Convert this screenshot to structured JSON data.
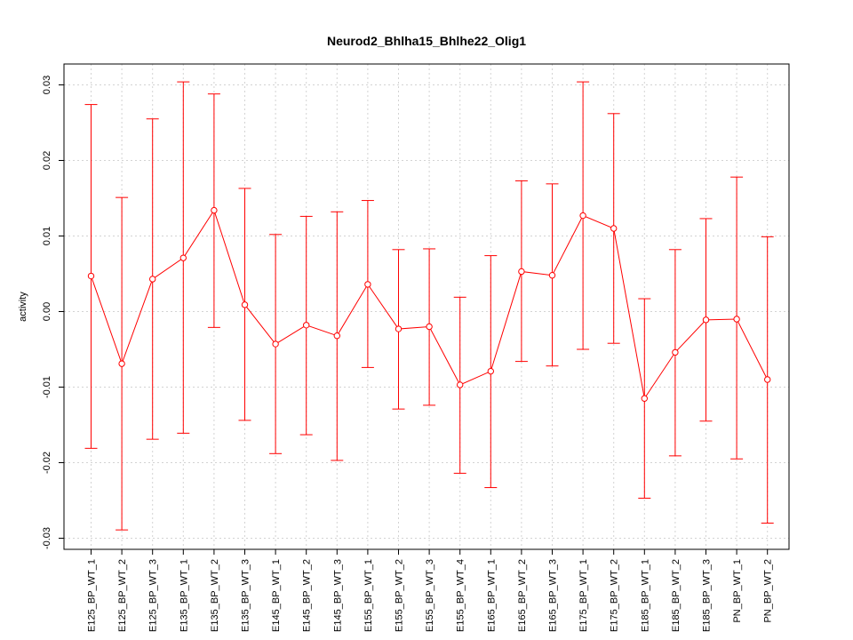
{
  "chart_data": {
    "type": "line",
    "title": "Neurod2_Bhlha15_Bhlhe22_Olig1",
    "xlabel": "",
    "ylabel": "activity",
    "ylim": [
      -0.0315,
      0.0325
    ],
    "yticks": [
      -0.03,
      -0.02,
      -0.01,
      0.0,
      0.01,
      0.02,
      0.03
    ],
    "ytick_labels": [
      "-0.03",
      "-0.02",
      "-0.01",
      "0.00",
      "0.01",
      "0.02",
      "0.03"
    ],
    "grid": true,
    "color": "#ff0000",
    "categories": [
      "E125_BP_WT_1",
      "E125_BP_WT_2",
      "E125_BP_WT_3",
      "E135_BP_WT_1",
      "E135_BP_WT_2",
      "E135_BP_WT_3",
      "E145_BP_WT_1",
      "E145_BP_WT_2",
      "E145_BP_WT_3",
      "E155_BP_WT_1",
      "E155_BP_WT_2",
      "E155_BP_WT_3",
      "E155_BP_WT_4",
      "E165_BP_WT_1",
      "E165_BP_WT_2",
      "E165_BP_WT_3",
      "E175_BP_WT_1",
      "E175_BP_WT_2",
      "E185_BP_WT_1",
      "E185_BP_WT_2",
      "E185_BP_WT_3",
      "PN_BP_WT_1",
      "PN_BP_WT_2"
    ],
    "values": [
      0.0047,
      -0.0069,
      0.0043,
      0.0071,
      0.0134,
      0.0009,
      -0.0043,
      -0.0018,
      -0.0032,
      0.0036,
      -0.0023,
      -0.002,
      -0.0097,
      -0.0079,
      0.0053,
      0.0048,
      0.0127,
      0.011,
      -0.0115,
      -0.0054,
      -0.0011,
      -0.001,
      -0.009
    ],
    "upper": [
      0.0274,
      0.0151,
      0.0255,
      0.0304,
      0.0288,
      0.0163,
      0.0102,
      0.0126,
      0.0132,
      0.0147,
      0.0082,
      0.0083,
      0.0019,
      0.0074,
      0.0173,
      0.0169,
      0.0304,
      0.0262,
      0.0017,
      0.0082,
      0.0123,
      0.0178,
      0.0099
    ],
    "lower": [
      -0.0181,
      -0.0289,
      -0.0169,
      -0.0161,
      -0.0021,
      -0.0144,
      -0.0188,
      -0.0163,
      -0.0197,
      -0.0074,
      -0.0129,
      -0.0124,
      -0.0214,
      -0.0233,
      -0.0066,
      -0.0072,
      -0.005,
      -0.0042,
      -0.0247,
      -0.0191,
      -0.0145,
      -0.0195,
      -0.028
    ]
  }
}
